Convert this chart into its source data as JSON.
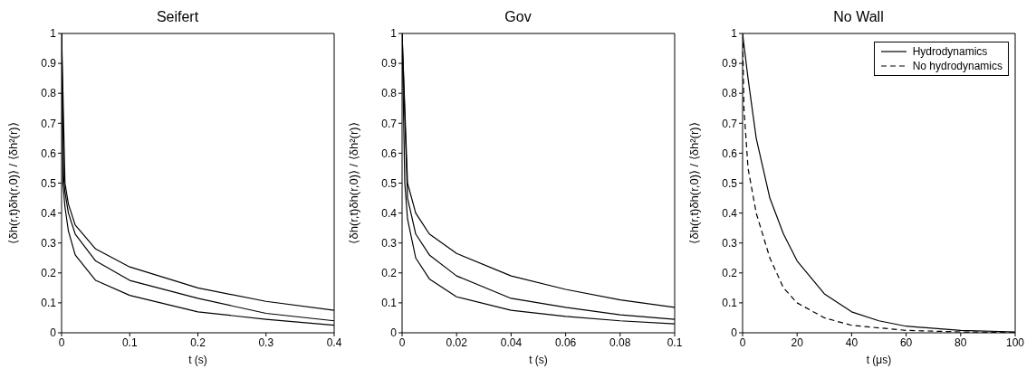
{
  "chart_data": [
    {
      "type": "line",
      "title": "Seifert",
      "xlabel": "t (s)",
      "ylabel": "⟨δh(r,t)δh(r,0)⟩ / ⟨δh²(r)⟩",
      "xlim": [
        0,
        0.4
      ],
      "xticks": [
        0,
        0.1,
        0.2,
        0.3,
        0.4
      ],
      "ylim": [
        0,
        1
      ],
      "yticks": [
        0,
        0.1,
        0.2,
        0.3,
        0.4,
        0.5,
        0.6,
        0.7,
        0.8,
        0.9,
        1
      ],
      "grid": false,
      "legend": false,
      "marker": "none",
      "line_style": "solid",
      "series": [
        {
          "color": "#000000",
          "x": [
            0,
            0.005,
            0.01,
            0.02,
            0.05,
            0.1,
            0.2,
            0.3,
            0.4
          ],
          "values": [
            1,
            0.5,
            0.43,
            0.36,
            0.28,
            0.22,
            0.15,
            0.105,
            0.075
          ]
        },
        {
          "color": "#000000",
          "x": [
            0,
            0.003,
            0.005,
            0.01,
            0.02,
            0.05,
            0.1,
            0.2,
            0.3,
            0.4
          ],
          "values": [
            1,
            0.52,
            0.47,
            0.4,
            0.33,
            0.24,
            0.175,
            0.115,
            0.065,
            0.04
          ]
        },
        {
          "color": "#000000",
          "x": [
            0,
            0.002,
            0.005,
            0.01,
            0.02,
            0.05,
            0.1,
            0.2,
            0.3,
            0.4
          ],
          "values": [
            1,
            0.5,
            0.42,
            0.34,
            0.26,
            0.175,
            0.125,
            0.07,
            0.045,
            0.025
          ]
        }
      ]
    },
    {
      "type": "line",
      "title": "Gov",
      "xlabel": "t (s)",
      "ylabel": "⟨δh(r,t)δh(r,0)⟩ / ⟨δh²(r)⟩",
      "xlim": [
        0,
        0.1
      ],
      "xticks": [
        0,
        0.02,
        0.04,
        0.06,
        0.08,
        0.1
      ],
      "ylim": [
        0,
        1
      ],
      "yticks": [
        0,
        0.1,
        0.2,
        0.3,
        0.4,
        0.5,
        0.6,
        0.7,
        0.8,
        0.9,
        1
      ],
      "grid": false,
      "legend": false,
      "marker": "none",
      "line_style": "solid",
      "series": [
        {
          "color": "#000000",
          "x": [
            0,
            0.002,
            0.005,
            0.01,
            0.02,
            0.04,
            0.06,
            0.08,
            0.1
          ],
          "values": [
            1,
            0.5,
            0.4,
            0.33,
            0.265,
            0.19,
            0.145,
            0.11,
            0.085
          ]
        },
        {
          "color": "#000000",
          "x": [
            0,
            0.002,
            0.005,
            0.01,
            0.02,
            0.04,
            0.06,
            0.08,
            0.1
          ],
          "values": [
            1,
            0.45,
            0.33,
            0.26,
            0.19,
            0.115,
            0.085,
            0.06,
            0.045
          ]
        },
        {
          "color": "#000000",
          "x": [
            0,
            0.001,
            0.002,
            0.005,
            0.01,
            0.02,
            0.04,
            0.06,
            0.08,
            0.1
          ],
          "values": [
            1,
            0.5,
            0.38,
            0.25,
            0.18,
            0.12,
            0.075,
            0.055,
            0.04,
            0.03
          ]
        }
      ]
    },
    {
      "type": "line",
      "title": "No Wall",
      "xlabel": "t (μs)",
      "ylabel": "⟨δh(r,t)δh(r,0)⟩ / ⟨δh²(r)⟩",
      "xlim": [
        0,
        100
      ],
      "xticks": [
        0,
        20,
        40,
        60,
        80,
        100
      ],
      "ylim": [
        0,
        1
      ],
      "yticks": [
        0,
        0.1,
        0.2,
        0.3,
        0.4,
        0.5,
        0.6,
        0.7,
        0.8,
        0.9,
        1
      ],
      "grid": false,
      "legend": "top right",
      "marker": "none",
      "series": [
        {
          "name": "Hydrodynamics",
          "color": "#000000",
          "line_style": "solid",
          "x": [
            0,
            2,
            5,
            10,
            15,
            20,
            30,
            40,
            50,
            60,
            80,
            100
          ],
          "values": [
            1,
            0.85,
            0.65,
            0.45,
            0.33,
            0.24,
            0.13,
            0.07,
            0.04,
            0.022,
            0.008,
            0.003
          ]
        },
        {
          "name": "No hydrodynamics",
          "color": "#000000",
          "line_style": "dashed",
          "x": [
            0,
            0.5,
            2,
            5,
            10,
            15,
            20,
            30,
            40,
            60,
            80,
            100
          ],
          "values": [
            1,
            0.75,
            0.55,
            0.4,
            0.25,
            0.15,
            0.1,
            0.05,
            0.025,
            0.008,
            0.003,
            0.001
          ]
        }
      ]
    }
  ]
}
